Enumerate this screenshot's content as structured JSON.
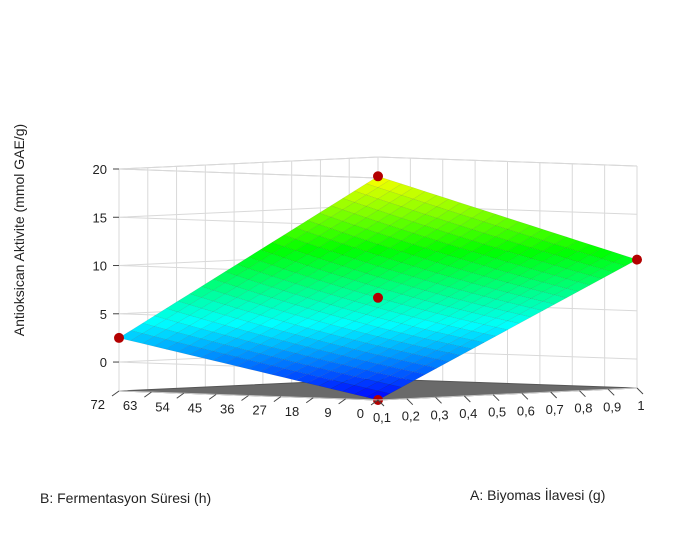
{
  "chart_data": {
    "type": "surface3d",
    "title": "",
    "xlabel": "A: Biyomas İlavesi (g)",
    "ylabel": "B: Fermentasyon Süresi (h)",
    "zlabel": "Antioksican Aktivite (mmol GAE/g)",
    "x_ticks": [
      "0,1",
      "0,2",
      "0,3",
      "0,4",
      "0,5",
      "0,6",
      "0,7",
      "0,8",
      "0,9",
      "1"
    ],
    "y_ticks": [
      "0",
      "9",
      "18",
      "27",
      "36",
      "45",
      "54",
      "63",
      "72"
    ],
    "z_ticks": [
      "0",
      "5",
      "10",
      "15",
      "20"
    ],
    "xlim": [
      0.1,
      1.0
    ],
    "ylim": [
      0,
      72
    ],
    "zlim": [
      -3,
      20
    ],
    "surface": {
      "corners": [
        {
          "A": 0.1,
          "B": 0,
          "z": -3.0
        },
        {
          "A": 1.0,
          "B": 0,
          "z": 10.3
        },
        {
          "A": 0.1,
          "B": 72,
          "z": 2.5
        },
        {
          "A": 1.0,
          "B": 72,
          "z": 18.0
        }
      ],
      "center": {
        "A": 0.55,
        "B": 36,
        "z": 6.5
      }
    },
    "design_points": [
      {
        "A": 0.1,
        "B": 0,
        "z": -3.0
      },
      {
        "A": 1.0,
        "B": 0,
        "z": 10.3
      },
      {
        "A": 0.1,
        "B": 72,
        "z": 2.5
      },
      {
        "A": 1.0,
        "B": 72,
        "z": 18.0
      },
      {
        "A": 0.55,
        "B": 36,
        "z": 6.5
      }
    ],
    "colormap": [
      "#0000ff",
      "#00ffff",
      "#00ff00",
      "#ffff00"
    ],
    "floor_color": "#6a6a6a",
    "point_color": "#b30000"
  }
}
